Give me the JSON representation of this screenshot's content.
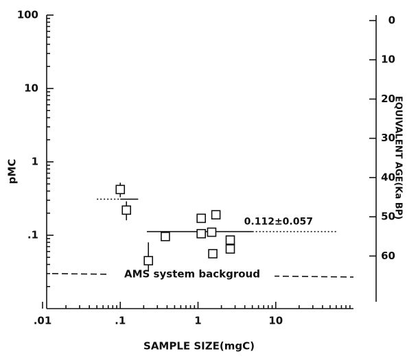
{
  "chart_data": {
    "type": "scatter",
    "xlabel": "SAMPLE SIZE(mgC)",
    "ylabel": "pMC",
    "y2label": "EQUIVALENT AGE(Ka BP)",
    "xlog": true,
    "ylog": true,
    "xlim": [
      0.01,
      100
    ],
    "ylim": [
      0.01,
      100
    ],
    "y2lim": [
      -1.4,
      73.4
    ],
    "xticks": [
      {
        "value": 0.01,
        "label": ".01"
      },
      {
        "value": 0.1,
        "label": ".1"
      },
      1,
      10
    ],
    "yticks": [
      100,
      10,
      1,
      {
        "value": 0.1,
        "label": ".1"
      }
    ],
    "y2ticks": [
      0,
      10,
      20,
      30,
      40,
      50,
      60
    ],
    "color": "#111111",
    "x": [
      0.1,
      0.12,
      0.23,
      0.38,
      1.1,
      1.1,
      1.5,
      1.7,
      1.55,
      2.6,
      2.6
    ],
    "values": [
      0.42,
      0.22,
      0.045,
      0.096,
      0.17,
      0.105,
      0.11,
      0.19,
      0.056,
      0.086,
      0.065
    ],
    "ylow": [
      0.33,
      0.16,
      0.032,
      0.09,
      null,
      null,
      null,
      null,
      null,
      null,
      null
    ],
    "yhigh": [
      0.52,
      0.29,
      0.08,
      0.105,
      null,
      null,
      null,
      null,
      null,
      null,
      null
    ],
    "fits": [
      {
        "value": 0.112,
        "x": [
          0.22,
          5
        ],
        "dotted_to": 60,
        "label": "0.112±0.057"
      },
      {
        "value": 0.31,
        "x": [
          0.1,
          0.17
        ],
        "dotted_from": 0.05
      }
    ],
    "background": {
      "value": 0.03,
      "label": "AMS system backgroud"
    }
  }
}
